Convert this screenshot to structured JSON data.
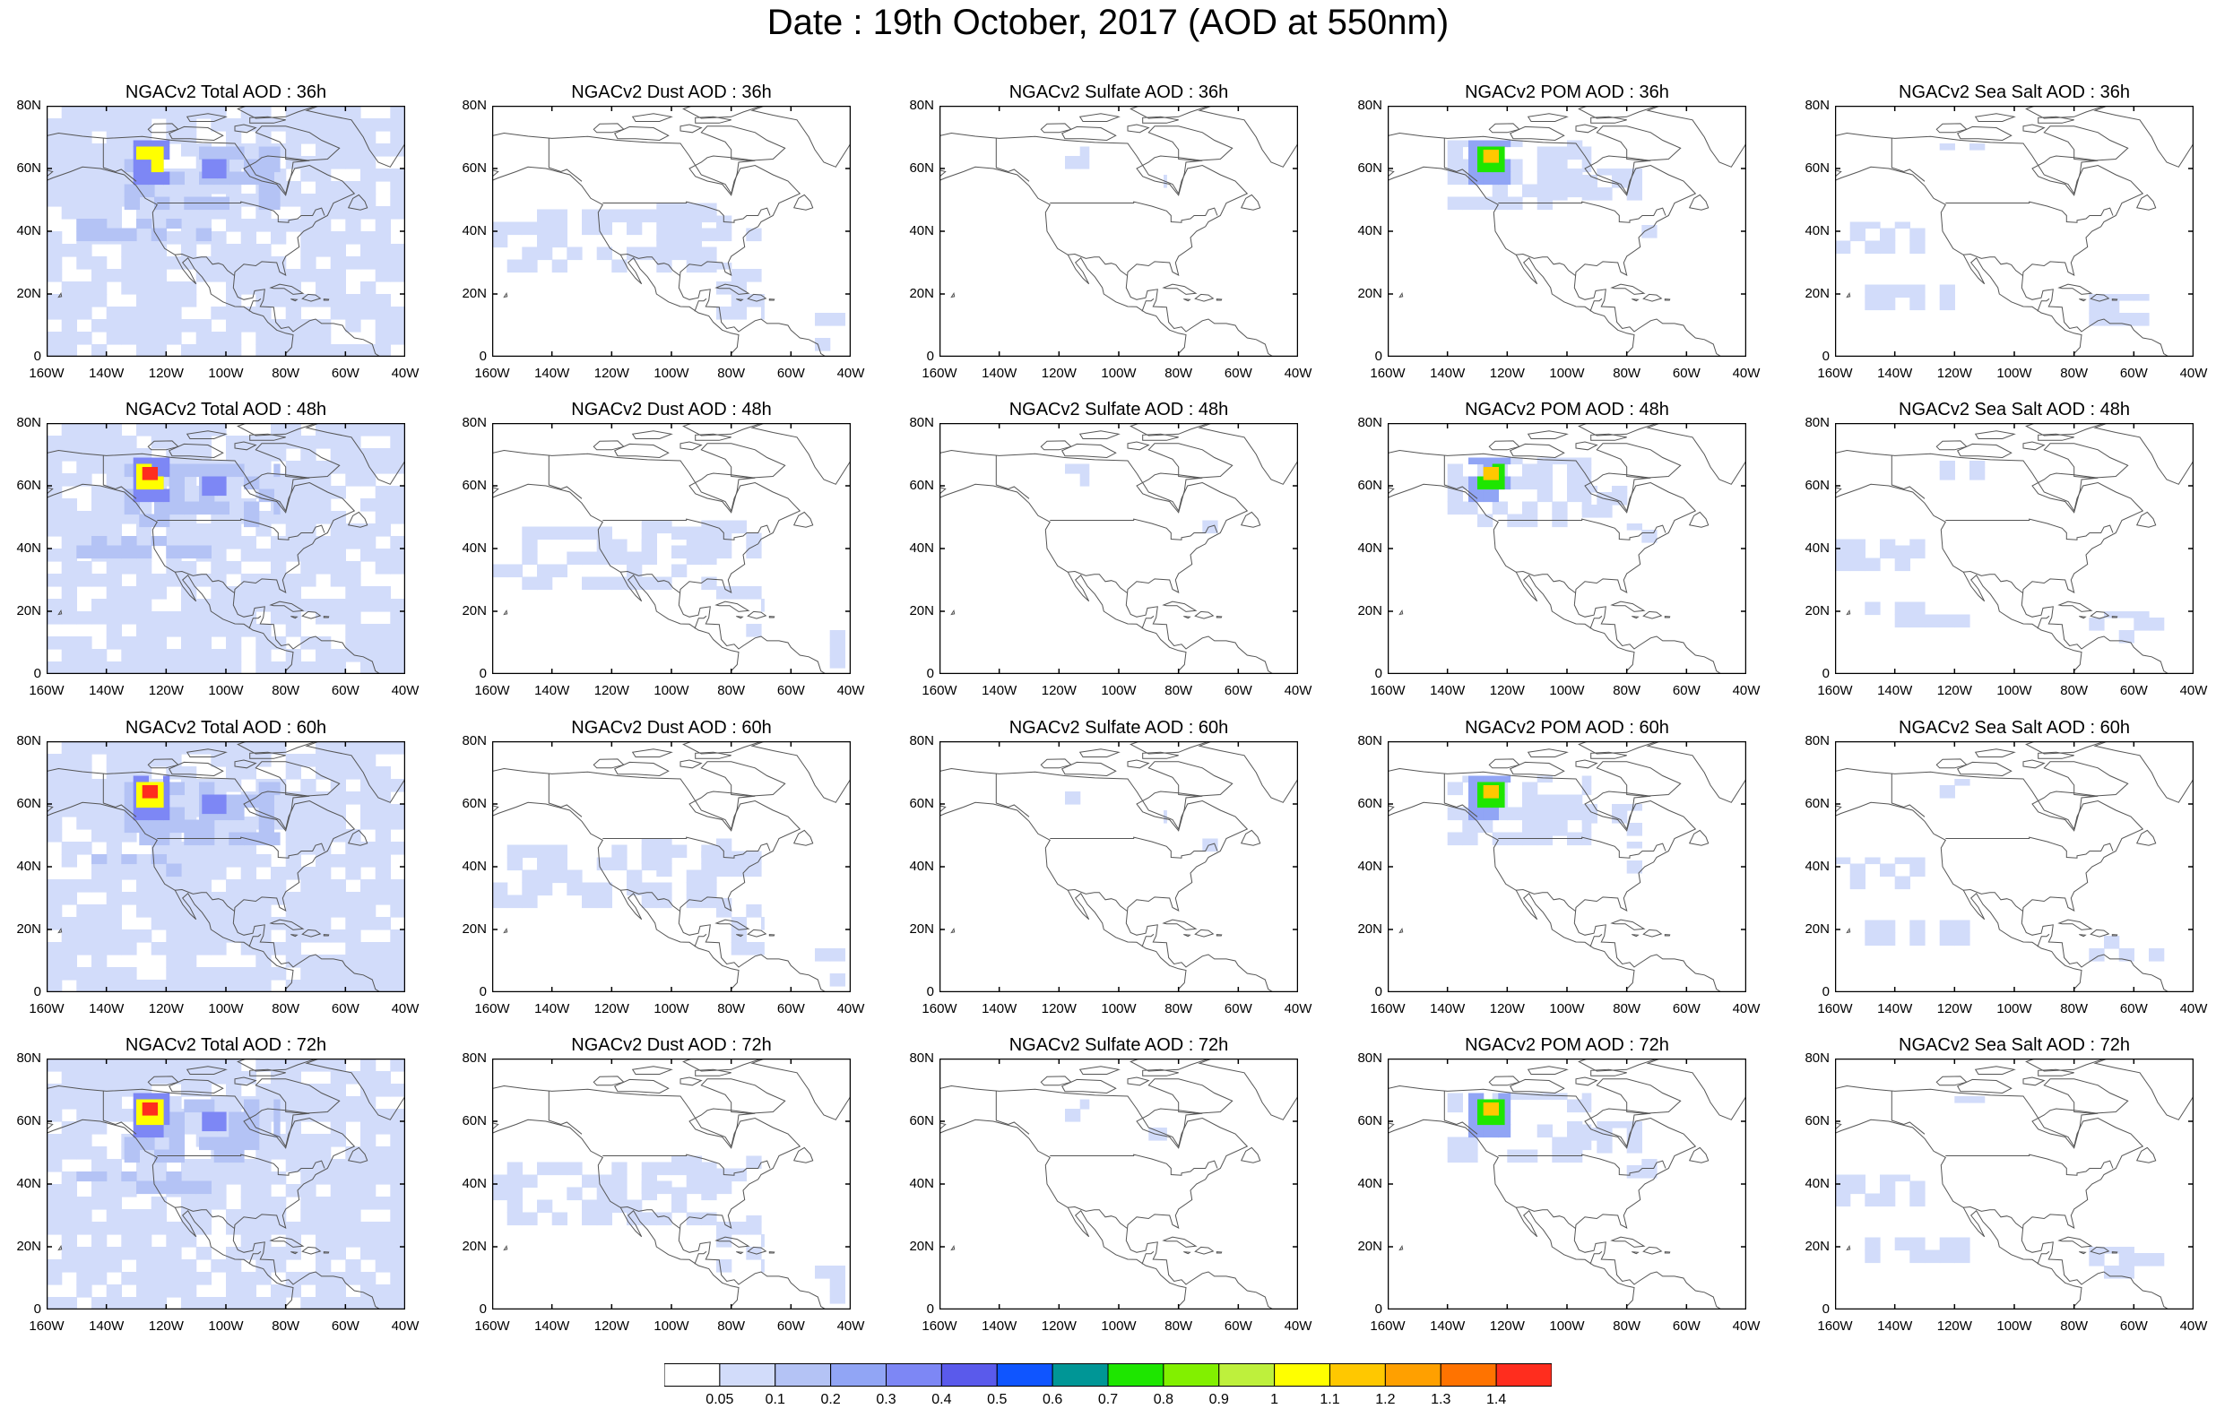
{
  "title": "Date : 19th October, 2017 (AOD at 550nm)",
  "colors": {
    "outline": "#555555",
    "levels": [
      "#ffffff",
      "#d2dcfa",
      "#b4c3f5",
      "#91a5f5",
      "#7d87f5",
      "#5a5aeb",
      "#0f55ff",
      "#009696",
      "#1ee600",
      "#82f000",
      "#bef03c",
      "#ffff00",
      "#ffc800",
      "#ffa000",
      "#ff7300",
      "#ff2d1e"
    ]
  },
  "colorbar": {
    "labels": [
      "0.05",
      "0.1",
      "0.2",
      "0.3",
      "0.4",
      "0.5",
      "0.6",
      "0.7",
      "0.8",
      "0.9",
      "1",
      "1.1",
      "1.2",
      "1.3",
      "1.4"
    ]
  },
  "axes": {
    "lat_labels": [
      "80N",
      "60N",
      "40N",
      "20N",
      "0"
    ],
    "lon_labels": [
      "160W",
      "140W",
      "120W",
      "100W",
      "80W",
      "60W",
      "40W"
    ],
    "lat_range": [
      0,
      80
    ],
    "lon_range": [
      -160,
      -40
    ]
  },
  "panels": [
    {
      "title": "NGACv2 Total AOD : 36h",
      "species": "total",
      "hour": 36
    },
    {
      "title": "NGACv2 Dust AOD : 36h",
      "species": "dust",
      "hour": 36
    },
    {
      "title": "NGACv2 Sulfate AOD : 36h",
      "species": "sulfate",
      "hour": 36
    },
    {
      "title": "NGACv2 POM AOD : 36h",
      "species": "pom",
      "hour": 36
    },
    {
      "title": "NGACv2 Sea Salt AOD : 36h",
      "species": "seasalt",
      "hour": 36
    },
    {
      "title": "NGACv2 Total AOD : 48h",
      "species": "total",
      "hour": 48
    },
    {
      "title": "NGACv2 Dust AOD : 48h",
      "species": "dust",
      "hour": 48
    },
    {
      "title": "NGACv2 Sulfate AOD : 48h",
      "species": "sulfate",
      "hour": 48
    },
    {
      "title": "NGACv2 POM AOD : 48h",
      "species": "pom",
      "hour": 48
    },
    {
      "title": "NGACv2 Sea Salt AOD : 48h",
      "species": "seasalt",
      "hour": 48
    },
    {
      "title": "NGACv2 Total AOD : 60h",
      "species": "total",
      "hour": 60
    },
    {
      "title": "NGACv2 Dust AOD : 60h",
      "species": "dust",
      "hour": 60
    },
    {
      "title": "NGACv2 Sulfate AOD : 60h",
      "species": "sulfate",
      "hour": 60
    },
    {
      "title": "NGACv2 POM AOD : 60h",
      "species": "pom",
      "hour": 60
    },
    {
      "title": "NGACv2 Sea Salt AOD : 60h",
      "species": "seasalt",
      "hour": 60
    },
    {
      "title": "NGACv2 Total AOD : 72h",
      "species": "total",
      "hour": 72
    },
    {
      "title": "NGACv2 Dust AOD : 72h",
      "species": "dust",
      "hour": 72
    },
    {
      "title": "NGACv2 Sulfate AOD : 72h",
      "species": "sulfate",
      "hour": 72
    },
    {
      "title": "NGACv2 POM AOD : 72h",
      "species": "pom",
      "hour": 72
    },
    {
      "title": "NGACv2 Sea Salt  AOD : 72h",
      "species": "seasalt",
      "hour": 72
    }
  ],
  "features": {
    "total": [
      {
        "lon": -160,
        "lat": 0,
        "w": 120,
        "h": 80,
        "level": 1
      },
      {
        "lon": -134,
        "lat": 47,
        "w": 52,
        "h": 20,
        "level": 2
      },
      {
        "lon": -131,
        "lat": 55,
        "w": 12,
        "h": 14,
        "level": 4
      },
      {
        "lon": -130,
        "lat": 59,
        "w": 9,
        "h": 8,
        "level": 11
      },
      {
        "lon": -128,
        "lat": 62,
        "w": 5,
        "h": 4,
        "level": 15
      },
      {
        "lon": -108,
        "lat": 57,
        "w": 8,
        "h": 6,
        "level": 4
      },
      {
        "lon": -150,
        "lat": 37,
        "w": 45,
        "h": 7,
        "level": 2
      }
    ],
    "dust": [
      {
        "lon": -160,
        "lat": 27,
        "w": 75,
        "h": 20,
        "level": 1
      },
      {
        "lon": -110,
        "lat": 37,
        "w": 40,
        "h": 12,
        "level": 1
      },
      {
        "lon": -85,
        "lat": 12,
        "w": 16,
        "h": 18,
        "level": 1
      },
      {
        "lon": -52,
        "lat": 2,
        "w": 10,
        "h": 12,
        "level": 1
      }
    ],
    "sulfate": [
      {
        "lon": -118,
        "lat": 60,
        "w": 8,
        "h": 7,
        "level": 1
      },
      {
        "lon": -90,
        "lat": 54,
        "w": 6,
        "h": 4,
        "level": 1
      },
      {
        "lon": -72,
        "lat": 45,
        "w": 5,
        "h": 4,
        "level": 1
      }
    ],
    "pom": [
      {
        "lon": -140,
        "lat": 47,
        "w": 48,
        "h": 22,
        "level": 1
      },
      {
        "lon": -133,
        "lat": 55,
        "w": 14,
        "h": 14,
        "level": 3
      },
      {
        "lon": -130,
        "lat": 59,
        "w": 9,
        "h": 8,
        "level": 8
      },
      {
        "lon": -128,
        "lat": 62,
        "w": 5,
        "h": 4,
        "level": 12
      },
      {
        "lon": -105,
        "lat": 50,
        "w": 30,
        "h": 10,
        "level": 1
      },
      {
        "lon": -80,
        "lat": 38,
        "w": 10,
        "h": 10,
        "level": 1
      }
    ],
    "seasalt": [
      {
        "lon": -160,
        "lat": 33,
        "w": 30,
        "h": 10,
        "level": 1
      },
      {
        "lon": -150,
        "lat": 15,
        "w": 35,
        "h": 8,
        "level": 1
      },
      {
        "lon": -75,
        "lat": 10,
        "w": 25,
        "h": 10,
        "level": 1
      },
      {
        "lon": -125,
        "lat": 62,
        "w": 15,
        "h": 6,
        "level": 1
      }
    ]
  }
}
